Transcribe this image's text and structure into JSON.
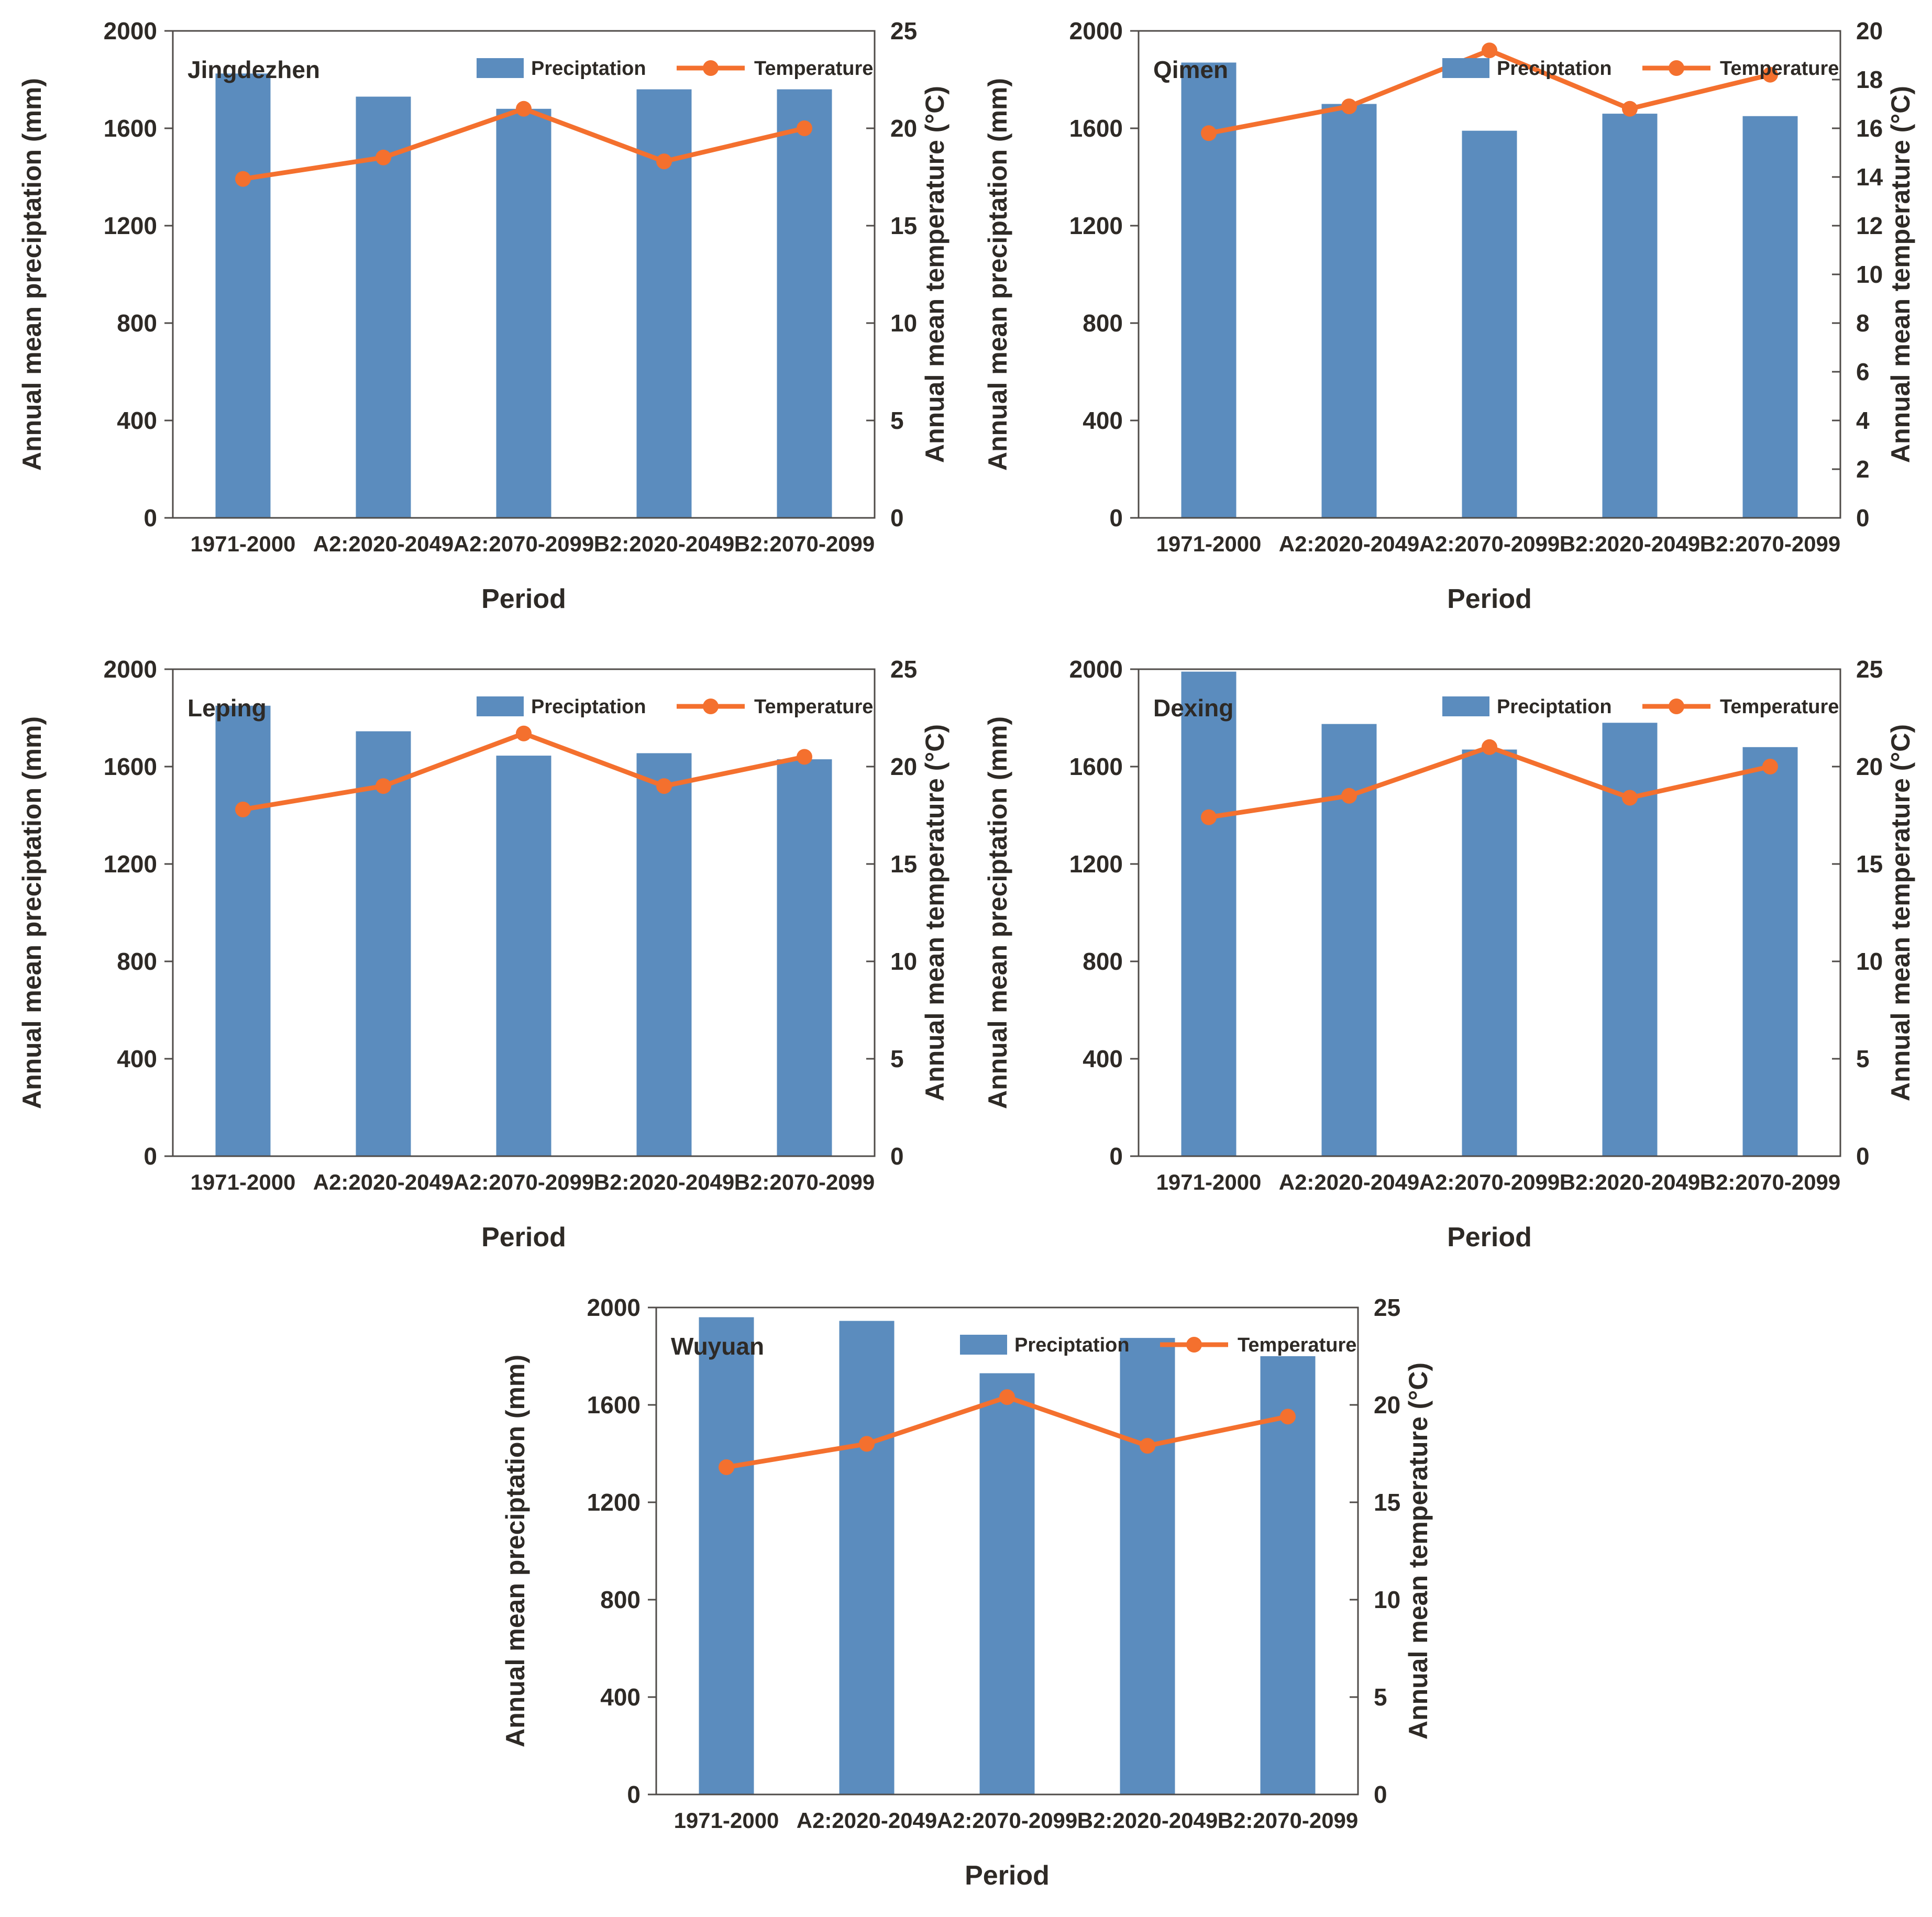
{
  "figure": {
    "colors": {
      "bar": "#5b8cbe",
      "line": "#f4702e",
      "axis": "#4f4b48",
      "text": "#2e2a26"
    },
    "left_axis": {
      "label": "Annual mean preciptation (mm)",
      "min": 0,
      "max": 2000,
      "step": 400
    },
    "right_axis_label": "Annual mean temperature (°C)",
    "xlabel": "Period",
    "legend": {
      "bar": "Preciptation",
      "line": "Temperature"
    }
  },
  "chart_data": [
    {
      "type": "bar+line",
      "name": "Jingdezhen",
      "categories": [
        "1971-2000",
        "A2:2020-2049",
        "A2:2070-2099",
        "B2:2020-2049",
        "B2:2070-2099"
      ],
      "series": [
        {
          "name": "Preciptation",
          "type": "bar",
          "axis": "left",
          "unit": "mm",
          "values": [
            1825,
            1730,
            1680,
            1760,
            1760
          ]
        },
        {
          "name": "Temperature",
          "type": "line",
          "axis": "right",
          "unit": "°C",
          "values": [
            17.4,
            18.5,
            21.0,
            18.3,
            20.0
          ]
        }
      ],
      "xlabel": "Period",
      "ylabel_left": "Annual mean preciptation (mm)",
      "ylabel_right": "Annual mean temperature (°C)",
      "ylim_left": [
        0,
        2000
      ],
      "right_axis": {
        "min": 0,
        "max": 25,
        "step": 5
      },
      "legend_position": "top-center",
      "grid": false
    },
    {
      "type": "bar+line",
      "name": "Qimen",
      "categories": [
        "1971-2000",
        "A2:2020-2049",
        "A2:2070-2099",
        "B2:2020-2049",
        "B2:2070-2099"
      ],
      "series": [
        {
          "name": "Preciptation",
          "type": "bar",
          "axis": "left",
          "unit": "mm",
          "values": [
            1870,
            1700,
            1590,
            1660,
            1650
          ]
        },
        {
          "name": "Temperature",
          "type": "line",
          "axis": "right",
          "unit": "°C",
          "values": [
            15.8,
            16.9,
            19.2,
            16.8,
            18.2
          ]
        }
      ],
      "xlabel": "Period",
      "ylabel_left": "Annual mean preciptation (mm)",
      "ylabel_right": "Annual mean temperature (°C)",
      "ylim_left": [
        0,
        2000
      ],
      "right_axis": {
        "min": 0,
        "max": 20,
        "step": 2
      },
      "legend_position": "top-center",
      "grid": false
    },
    {
      "type": "bar+line",
      "name": "Leping",
      "categories": [
        "1971-2000",
        "A2:2020-2049",
        "A2:2070-2099",
        "B2:2020-2049",
        "B2:2070-2099"
      ],
      "series": [
        {
          "name": "Preciptation",
          "type": "bar",
          "axis": "left",
          "unit": "mm",
          "values": [
            1850,
            1745,
            1645,
            1655,
            1630
          ]
        },
        {
          "name": "Temperature",
          "type": "line",
          "axis": "right",
          "unit": "°C",
          "values": [
            17.8,
            19.0,
            21.7,
            19.0,
            20.5
          ]
        }
      ],
      "xlabel": "Period",
      "ylabel_left": "Annual mean preciptation (mm)",
      "ylabel_right": "Annual mean temperature (°C)",
      "ylim_left": [
        0,
        2000
      ],
      "right_axis": {
        "min": 0,
        "max": 25,
        "step": 5
      },
      "legend_position": "top-center",
      "grid": false
    },
    {
      "type": "bar+line",
      "name": "Dexing",
      "categories": [
        "1971-2000",
        "A2:2020-2049",
        "A2:2070-2099",
        "B2:2020-2049",
        "B2:2070-2099"
      ],
      "series": [
        {
          "name": "Preciptation",
          "type": "bar",
          "axis": "left",
          "unit": "mm",
          "values": [
            1990,
            1775,
            1670,
            1780,
            1680
          ]
        },
        {
          "name": "Temperature",
          "type": "line",
          "axis": "right",
          "unit": "°C",
          "values": [
            17.4,
            18.5,
            21.0,
            18.4,
            20.0
          ]
        }
      ],
      "xlabel": "Period",
      "ylabel_left": "Annual mean preciptation (mm)",
      "ylabel_right": "Annual mean temperature (°C)",
      "ylim_left": [
        0,
        2000
      ],
      "right_axis": {
        "min": 0,
        "max": 25,
        "step": 5
      },
      "legend_position": "top-center",
      "grid": false
    },
    {
      "type": "bar+line",
      "name": "Wuyuan",
      "categories": [
        "1971-2000",
        "A2:2020-2049",
        "A2:2070-2099",
        "B2:2020-2049",
        "B2:2070-2099"
      ],
      "series": [
        {
          "name": "Preciptation",
          "type": "bar",
          "axis": "left",
          "unit": "mm",
          "values": [
            1960,
            1945,
            1730,
            1875,
            1800
          ]
        },
        {
          "name": "Temperature",
          "type": "line",
          "axis": "right",
          "unit": "°C",
          "values": [
            16.8,
            18.0,
            20.4,
            17.9,
            19.4
          ]
        }
      ],
      "xlabel": "Period",
      "ylabel_left": "Annual mean preciptation (mm)",
      "ylabel_right": "Annual mean temperature (°C)",
      "ylim_left": [
        0,
        2000
      ],
      "right_axis": {
        "min": 0,
        "max": 25,
        "step": 5
      },
      "legend_position": "top-center",
      "grid": false
    }
  ]
}
